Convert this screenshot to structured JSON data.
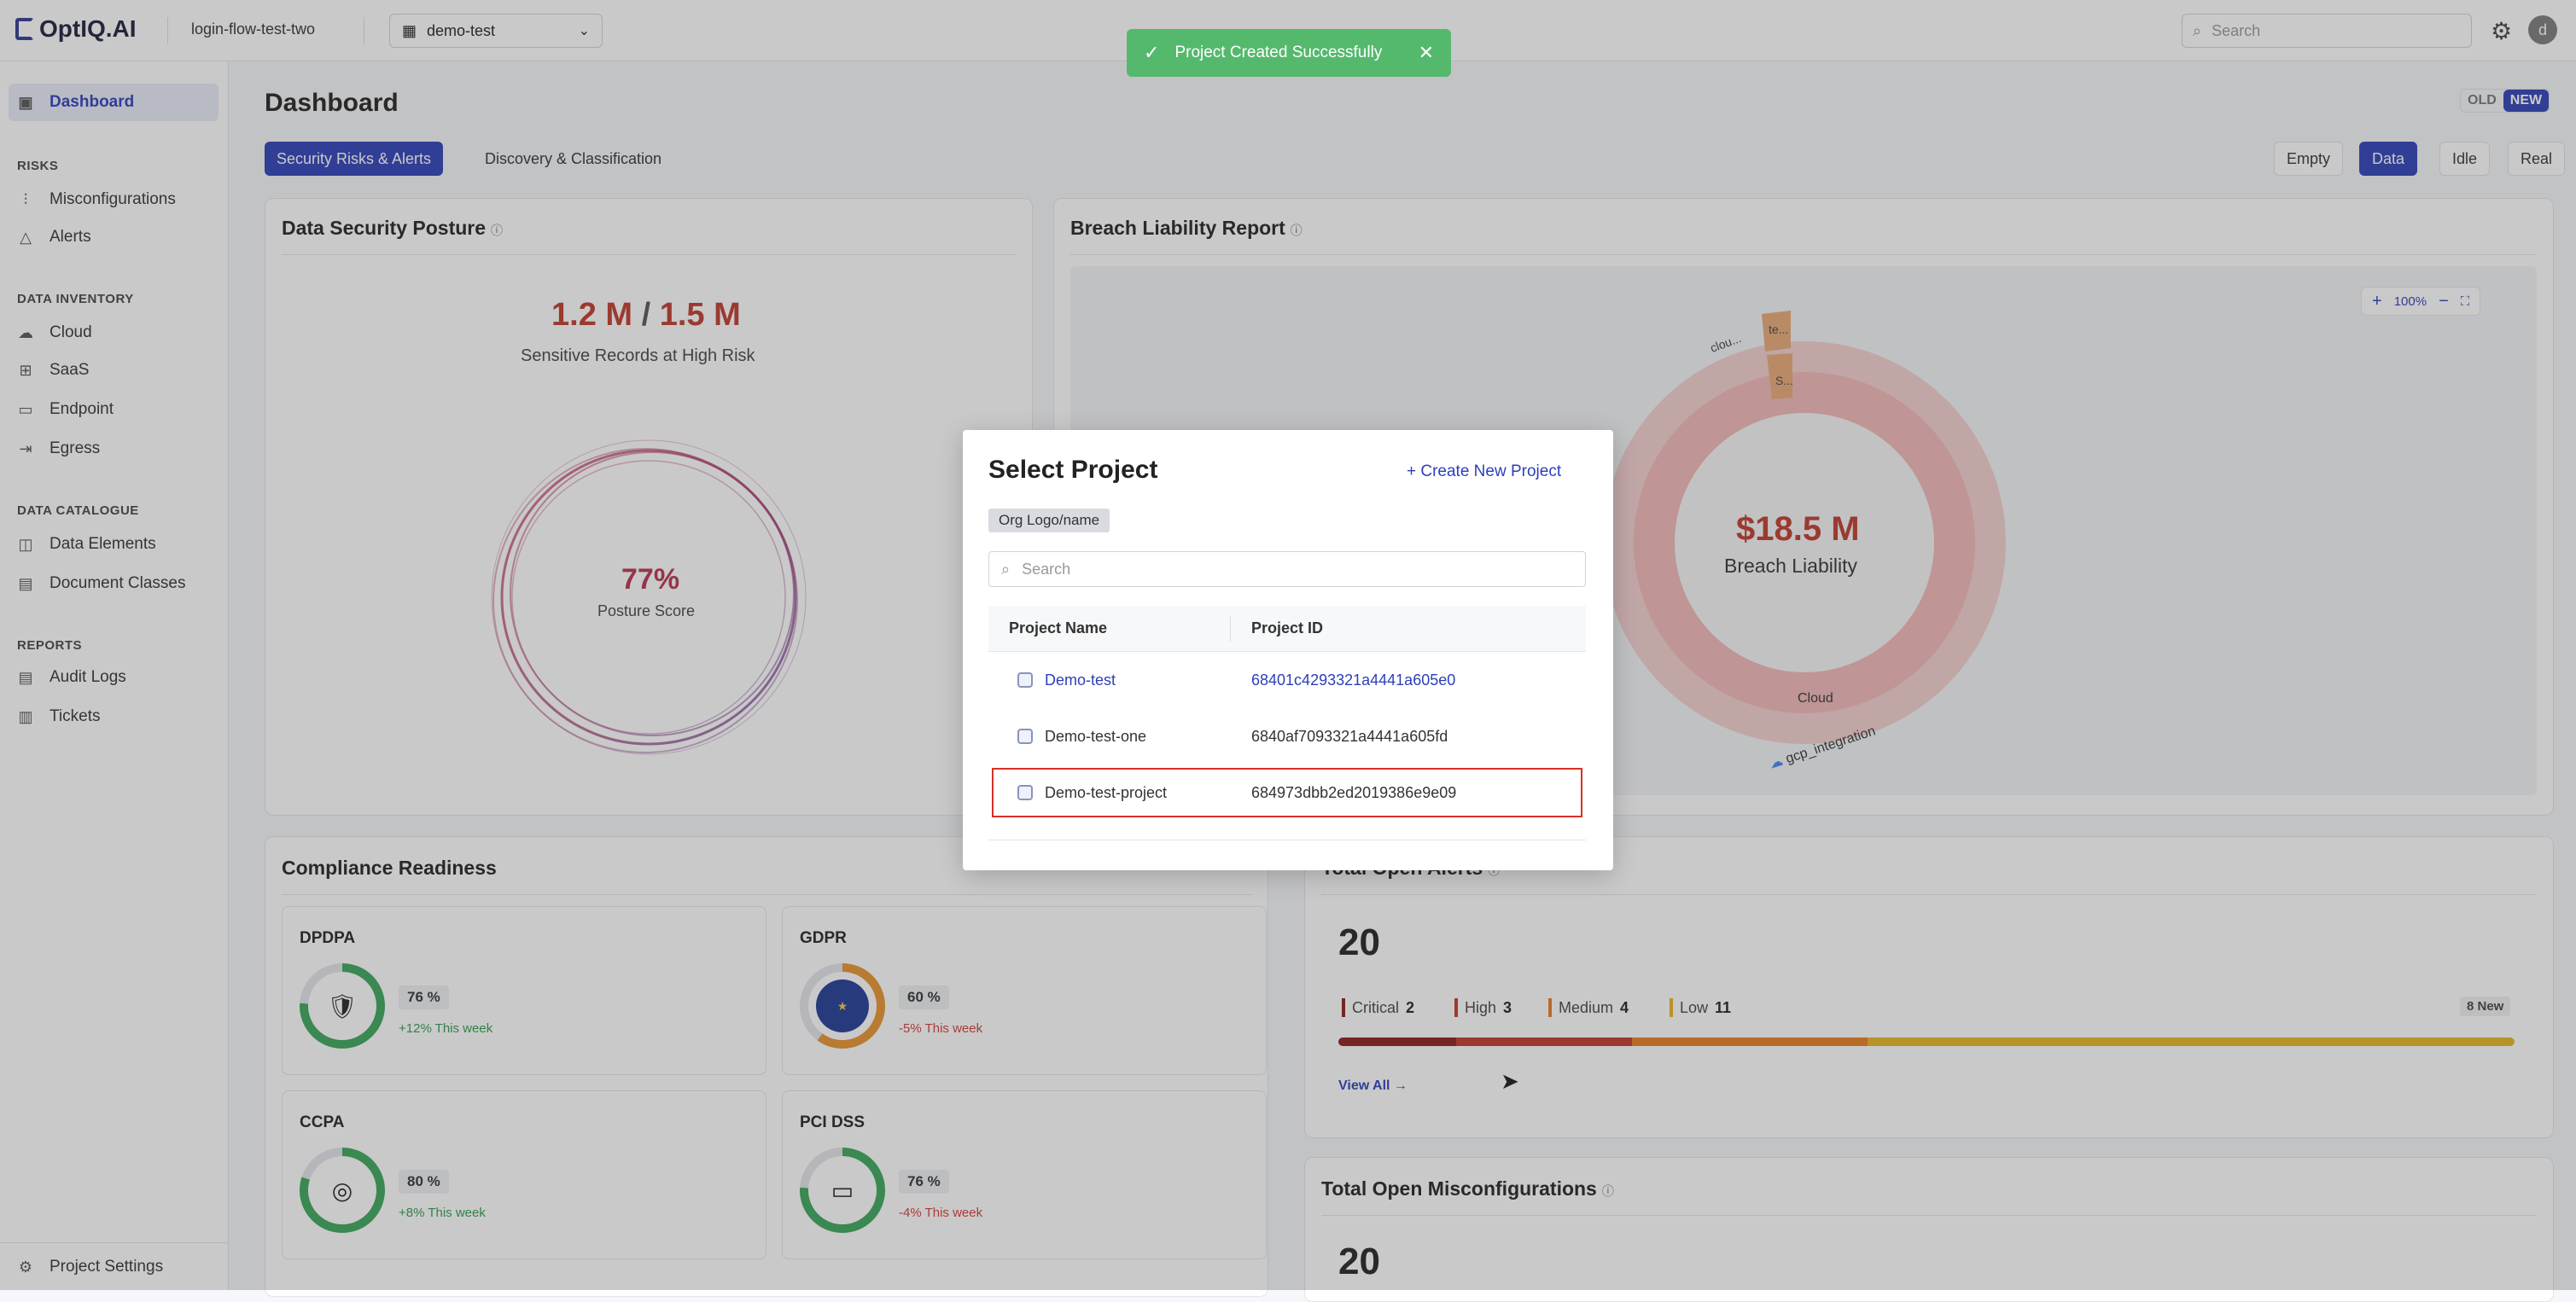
{
  "app": {
    "logo": "OptIQ.AI",
    "org_name": "login-flow-test-two",
    "project_selector": "demo-test",
    "search_placeholder": "Search",
    "avatar_letter": "d"
  },
  "sidebar": {
    "dashboard": "Dashboard",
    "sections": {
      "risks": "RISKS",
      "data_inventory": "DATA INVENTORY",
      "data_catalogue": "DATA CATALOGUE",
      "reports": "REPORTS"
    },
    "items": {
      "misconfigurations": "Misconfigurations",
      "alerts": "Alerts",
      "cloud": "Cloud",
      "saas": "SaaS",
      "endpoint": "Endpoint",
      "egress": "Egress",
      "data_elements": "Data Elements",
      "document_classes": "Document Classes",
      "audit_logs": "Audit Logs",
      "tickets": "Tickets"
    },
    "project_settings": "Project Settings"
  },
  "main": {
    "title": "Dashboard",
    "old_label": "OLD",
    "new_label": "NEW",
    "tabs": [
      "Security Risks & Alerts",
      "Discovery & Classification"
    ],
    "modes": [
      "Empty",
      "Data",
      "Idle",
      "Real"
    ]
  },
  "posture": {
    "title": "Data Security Posture",
    "records_high": "1.2 M",
    "records_sep": "/",
    "records_total": "1.5 M",
    "records_caption": "Sensitive Records at High Risk",
    "score": "77%",
    "score_label": "Posture Score"
  },
  "breach": {
    "title": "Breach Liability Report",
    "zoom": "100%",
    "amount": "$18.5 M",
    "amount_label": "Breach Liability",
    "segments": [
      "clou...",
      "te...",
      "S...",
      "Cloud",
      "gcp_integration"
    ]
  },
  "compliance": {
    "title": "Compliance Readiness",
    "items": [
      {
        "name": "DPDPA",
        "pct": "76 %",
        "trend": "+12% This week"
      },
      {
        "name": "GDPR",
        "pct": "60 %",
        "trend": "-5% This week"
      },
      {
        "name": "CCPA",
        "pct": "80 %",
        "trend": "+8% This week"
      },
      {
        "name": "PCI DSS",
        "pct": "76 %",
        "trend": "-4% This week"
      }
    ]
  },
  "alerts": {
    "title": "Total Open Alerts",
    "count": "20",
    "severities": [
      {
        "label": "Critical",
        "count": "2"
      },
      {
        "label": "High",
        "count": "3"
      },
      {
        "label": "Medium",
        "count": "4"
      },
      {
        "label": "Low",
        "count": "11"
      }
    ],
    "new_badge": "8 New",
    "view_all": "View All →"
  },
  "misconfig": {
    "title": "Total Open Misconfigurations",
    "count": "20"
  },
  "toast": {
    "message": "Project Created Successfully"
  },
  "modal": {
    "title": "Select Project",
    "create": "+  Create New Project",
    "org_chip": "Org Logo/name",
    "search_placeholder": "Search",
    "col_name": "Project Name",
    "col_id": "Project ID",
    "rows": [
      {
        "name": "Demo-test",
        "id": "68401c4293321a4441a605e0"
      },
      {
        "name": "Demo-test-one",
        "id": "6840af7093321a4441a605fd"
      },
      {
        "name": "Demo-test-project",
        "id": "684973dbb2ed2019386e9e09"
      }
    ]
  },
  "colors": {
    "accent": "#2d3fb8",
    "danger": "#c0392b",
    "success": "#55b96d"
  }
}
